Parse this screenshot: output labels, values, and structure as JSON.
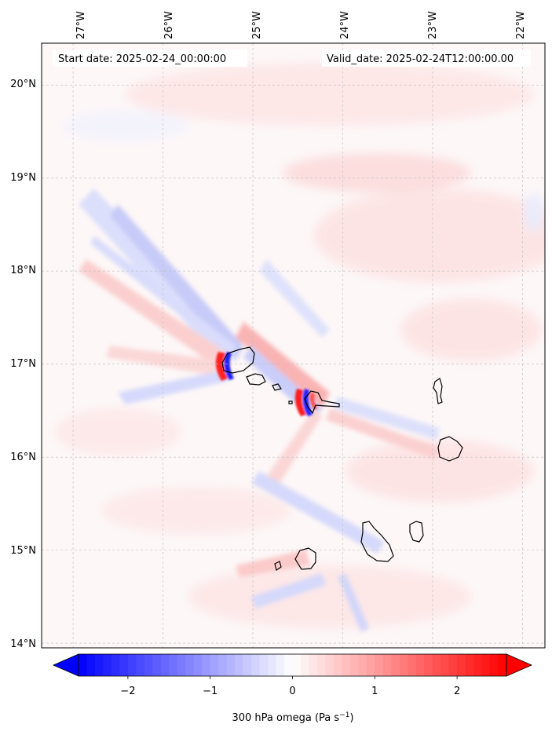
{
  "map": {
    "start_date_label": "Start date: 2025-02-24_00:00:00",
    "valid_date_label": "Valid_date: 2025-02-24T12:00:00.00",
    "lon_labels": [
      "27°W",
      "26°W",
      "25°W",
      "24°W",
      "23°W",
      "22°W"
    ],
    "lat_labels": [
      "20°N",
      "19°N",
      "18°N",
      "17°N",
      "16°N",
      "15°N",
      "14°N"
    ],
    "field": "300 hPa omega",
    "extent": {
      "lon_min": -27.35,
      "lon_max": -21.75,
      "lat_min": 13.95,
      "lat_max": 20.45
    }
  },
  "colorbar": {
    "label": "300 hPa omega (Pa s",
    "label_exp": "−1",
    "label_close": ")",
    "ticks": [
      {
        "value": -2,
        "text": "−2"
      },
      {
        "value": -1,
        "text": "−1"
      },
      {
        "value": 0,
        "text": "0"
      },
      {
        "value": 1,
        "text": "1"
      },
      {
        "value": 2,
        "text": "2"
      }
    ],
    "vmin": -2.6,
    "vmax": 2.6,
    "levels": 52,
    "colors": {
      "neg": "#0000ff",
      "mid": "#ffffff",
      "pos": "#ff0000"
    }
  }
}
